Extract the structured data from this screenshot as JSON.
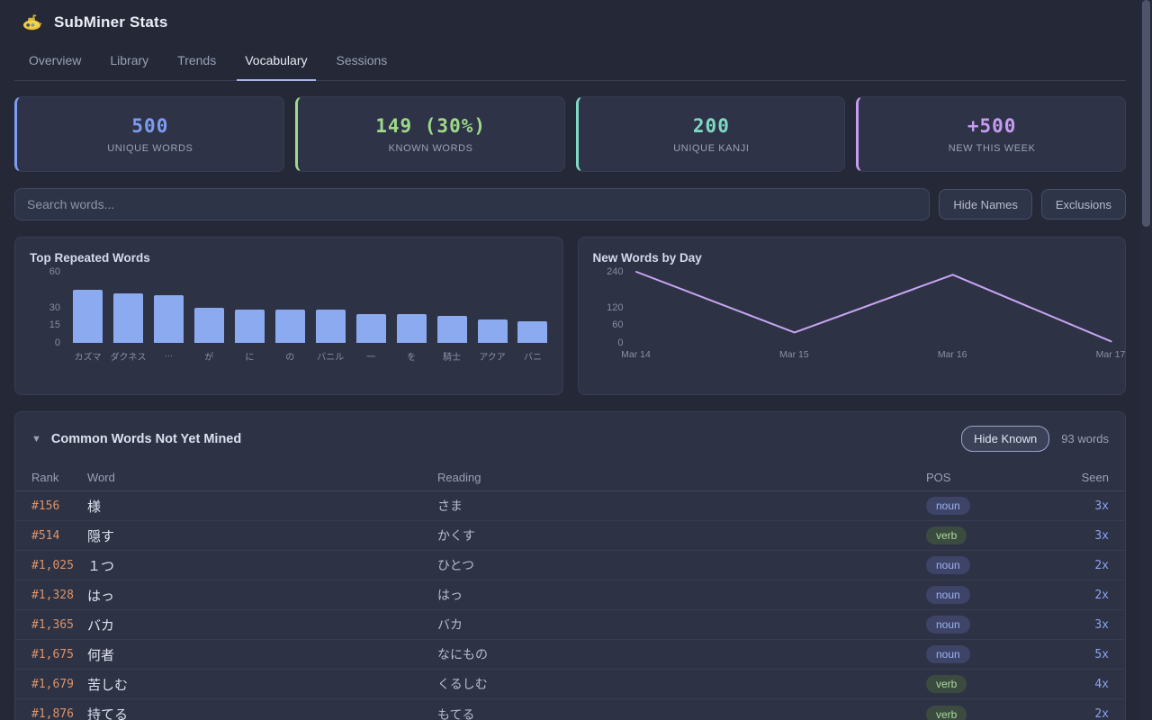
{
  "app": {
    "title": "SubMiner Stats"
  },
  "tabs": [
    {
      "label": "Overview",
      "active": false
    },
    {
      "label": "Library",
      "active": false
    },
    {
      "label": "Trends",
      "active": false
    },
    {
      "label": "Vocabulary",
      "active": true
    },
    {
      "label": "Sessions",
      "active": false
    }
  ],
  "stats": {
    "cards": [
      {
        "value": "500",
        "label": "UNIQUE WORDS",
        "accent": "#7e9cf0"
      },
      {
        "value": "149 (30%)",
        "label": "KNOWN WORDS",
        "accent": "#9fd98a"
      },
      {
        "value": "200",
        "label": "UNIQUE KANJI",
        "accent": "#7fd9c4"
      },
      {
        "value": "+500",
        "label": "NEW THIS WEEK",
        "accent": "#c79bf2"
      }
    ]
  },
  "search": {
    "placeholder": "Search words...",
    "value": ""
  },
  "actions": {
    "hide_names": "Hide Names",
    "exclusions": "Exclusions"
  },
  "chart_data": [
    {
      "type": "bar",
      "title": "Top Repeated Words",
      "categories": [
        "カズマ",
        "ダクネス",
        "…",
        "が",
        "に",
        "の",
        "バニル",
        "一",
        "を",
        "騎士",
        "アクア",
        "バニ"
      ],
      "values": [
        45,
        42,
        40,
        30,
        28,
        28,
        28,
        24,
        24,
        23,
        20,
        18
      ],
      "yticks": [
        0,
        15,
        30,
        60
      ],
      "ylim": [
        0,
        60
      ],
      "bar_color": "#8caaf0",
      "grid": false,
      "legend": false
    },
    {
      "type": "line",
      "title": "New Words by Day",
      "x": [
        "Mar 14",
        "Mar 15",
        "Mar 16",
        "Mar 17"
      ],
      "values": [
        240,
        35,
        230,
        5
      ],
      "yticks": [
        0,
        60,
        120,
        240
      ],
      "ylim": [
        0,
        240
      ],
      "line_color": "#c9a5f2",
      "grid": false,
      "legend": false
    }
  ],
  "table": {
    "collapse_icon": "▼",
    "title": "Common Words Not Yet Mined",
    "hide_known_label": "Hide Known",
    "count_label": "93 words",
    "columns": [
      "Rank",
      "Word",
      "Reading",
      "POS",
      "Seen"
    ],
    "pos_colors": {
      "noun": {
        "bg": "#3d4467",
        "text": "#9fb2f2"
      },
      "verb": {
        "bg": "#3c4b3f",
        "text": "#a9da9c"
      }
    },
    "rows": [
      {
        "rank": "#156",
        "word": "様",
        "reading": "さま",
        "pos": "noun",
        "seen": "3x"
      },
      {
        "rank": "#514",
        "word": "隠す",
        "reading": "かくす",
        "pos": "verb",
        "seen": "3x"
      },
      {
        "rank": "#1,025",
        "word": "１つ",
        "reading": "ひとつ",
        "pos": "noun",
        "seen": "2x"
      },
      {
        "rank": "#1,328",
        "word": "はっ",
        "reading": "はっ",
        "pos": "noun",
        "seen": "2x"
      },
      {
        "rank": "#1,365",
        "word": "バカ",
        "reading": "バカ",
        "pos": "noun",
        "seen": "3x"
      },
      {
        "rank": "#1,675",
        "word": "何者",
        "reading": "なにもの",
        "pos": "noun",
        "seen": "5x"
      },
      {
        "rank": "#1,679",
        "word": "苦しむ",
        "reading": "くるしむ",
        "pos": "verb",
        "seen": "4x"
      },
      {
        "rank": "#1,876",
        "word": "持てる",
        "reading": "もてる",
        "pos": "verb",
        "seen": "2x"
      }
    ]
  }
}
